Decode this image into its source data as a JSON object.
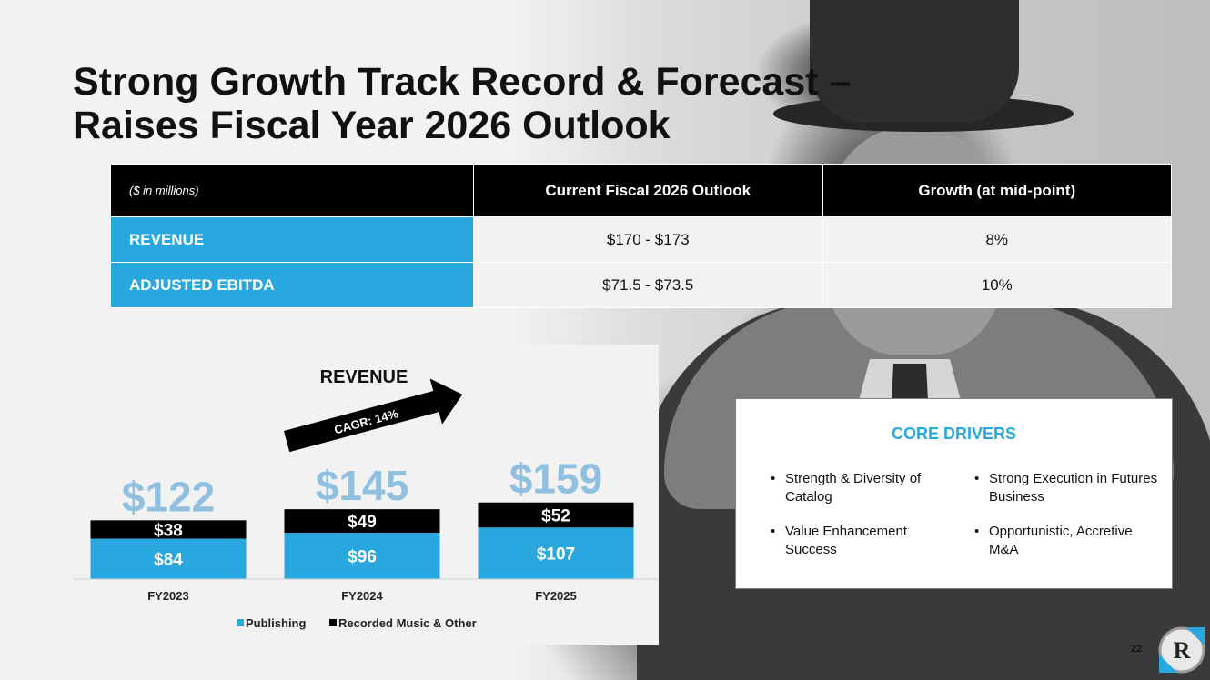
{
  "slide": {
    "title_line1": "Strong Growth Track Record & Forecast –",
    "title_line2": "Raises Fiscal Year 2026 Outlook",
    "page_number": "22",
    "logo_letter": "R"
  },
  "outlook_table": {
    "units_note": "($ in millions)",
    "headers": [
      "Current Fiscal 2026 Outlook",
      "Growth (at mid-point)"
    ],
    "rows": [
      {
        "label": "REVENUE",
        "outlook": "$170 - $173",
        "growth": "8%"
      },
      {
        "label": "ADJUSTED EBITDA",
        "outlook": "$71.5 - $73.5",
        "growth": "10%"
      }
    ]
  },
  "chart_data": {
    "type": "bar",
    "stacked": true,
    "title": "REVENUE",
    "categories": [
      "FY2023",
      "FY2024",
      "FY2025"
    ],
    "series": [
      {
        "name": "Publishing",
        "values": [
          84,
          96,
          107
        ],
        "labels": [
          "$84",
          "$96",
          "$107"
        ],
        "color": "#29a8e0"
      },
      {
        "name": "Recorded Music & Other",
        "values": [
          38,
          49,
          52
        ],
        "labels": [
          "$38",
          "$49",
          "$52"
        ],
        "color": "#000000"
      }
    ],
    "totals": [
      122,
      145,
      159
    ],
    "total_labels": [
      "$122",
      "$145",
      "$159"
    ],
    "annotation": "CAGR: 14%",
    "legend": "bottom",
    "grid": false
  },
  "core_drivers": {
    "heading": "CORE DRIVERS",
    "left": [
      "Strength & Diversity of Catalog",
      "Value Enhancement Success"
    ],
    "right": [
      "Strong Execution in Futures Business",
      "Opportunistic, Accretive M&A"
    ]
  },
  "colors": {
    "accent": "#29a8e0",
    "total_label": "#8fc0e0",
    "dark": "#000000"
  }
}
